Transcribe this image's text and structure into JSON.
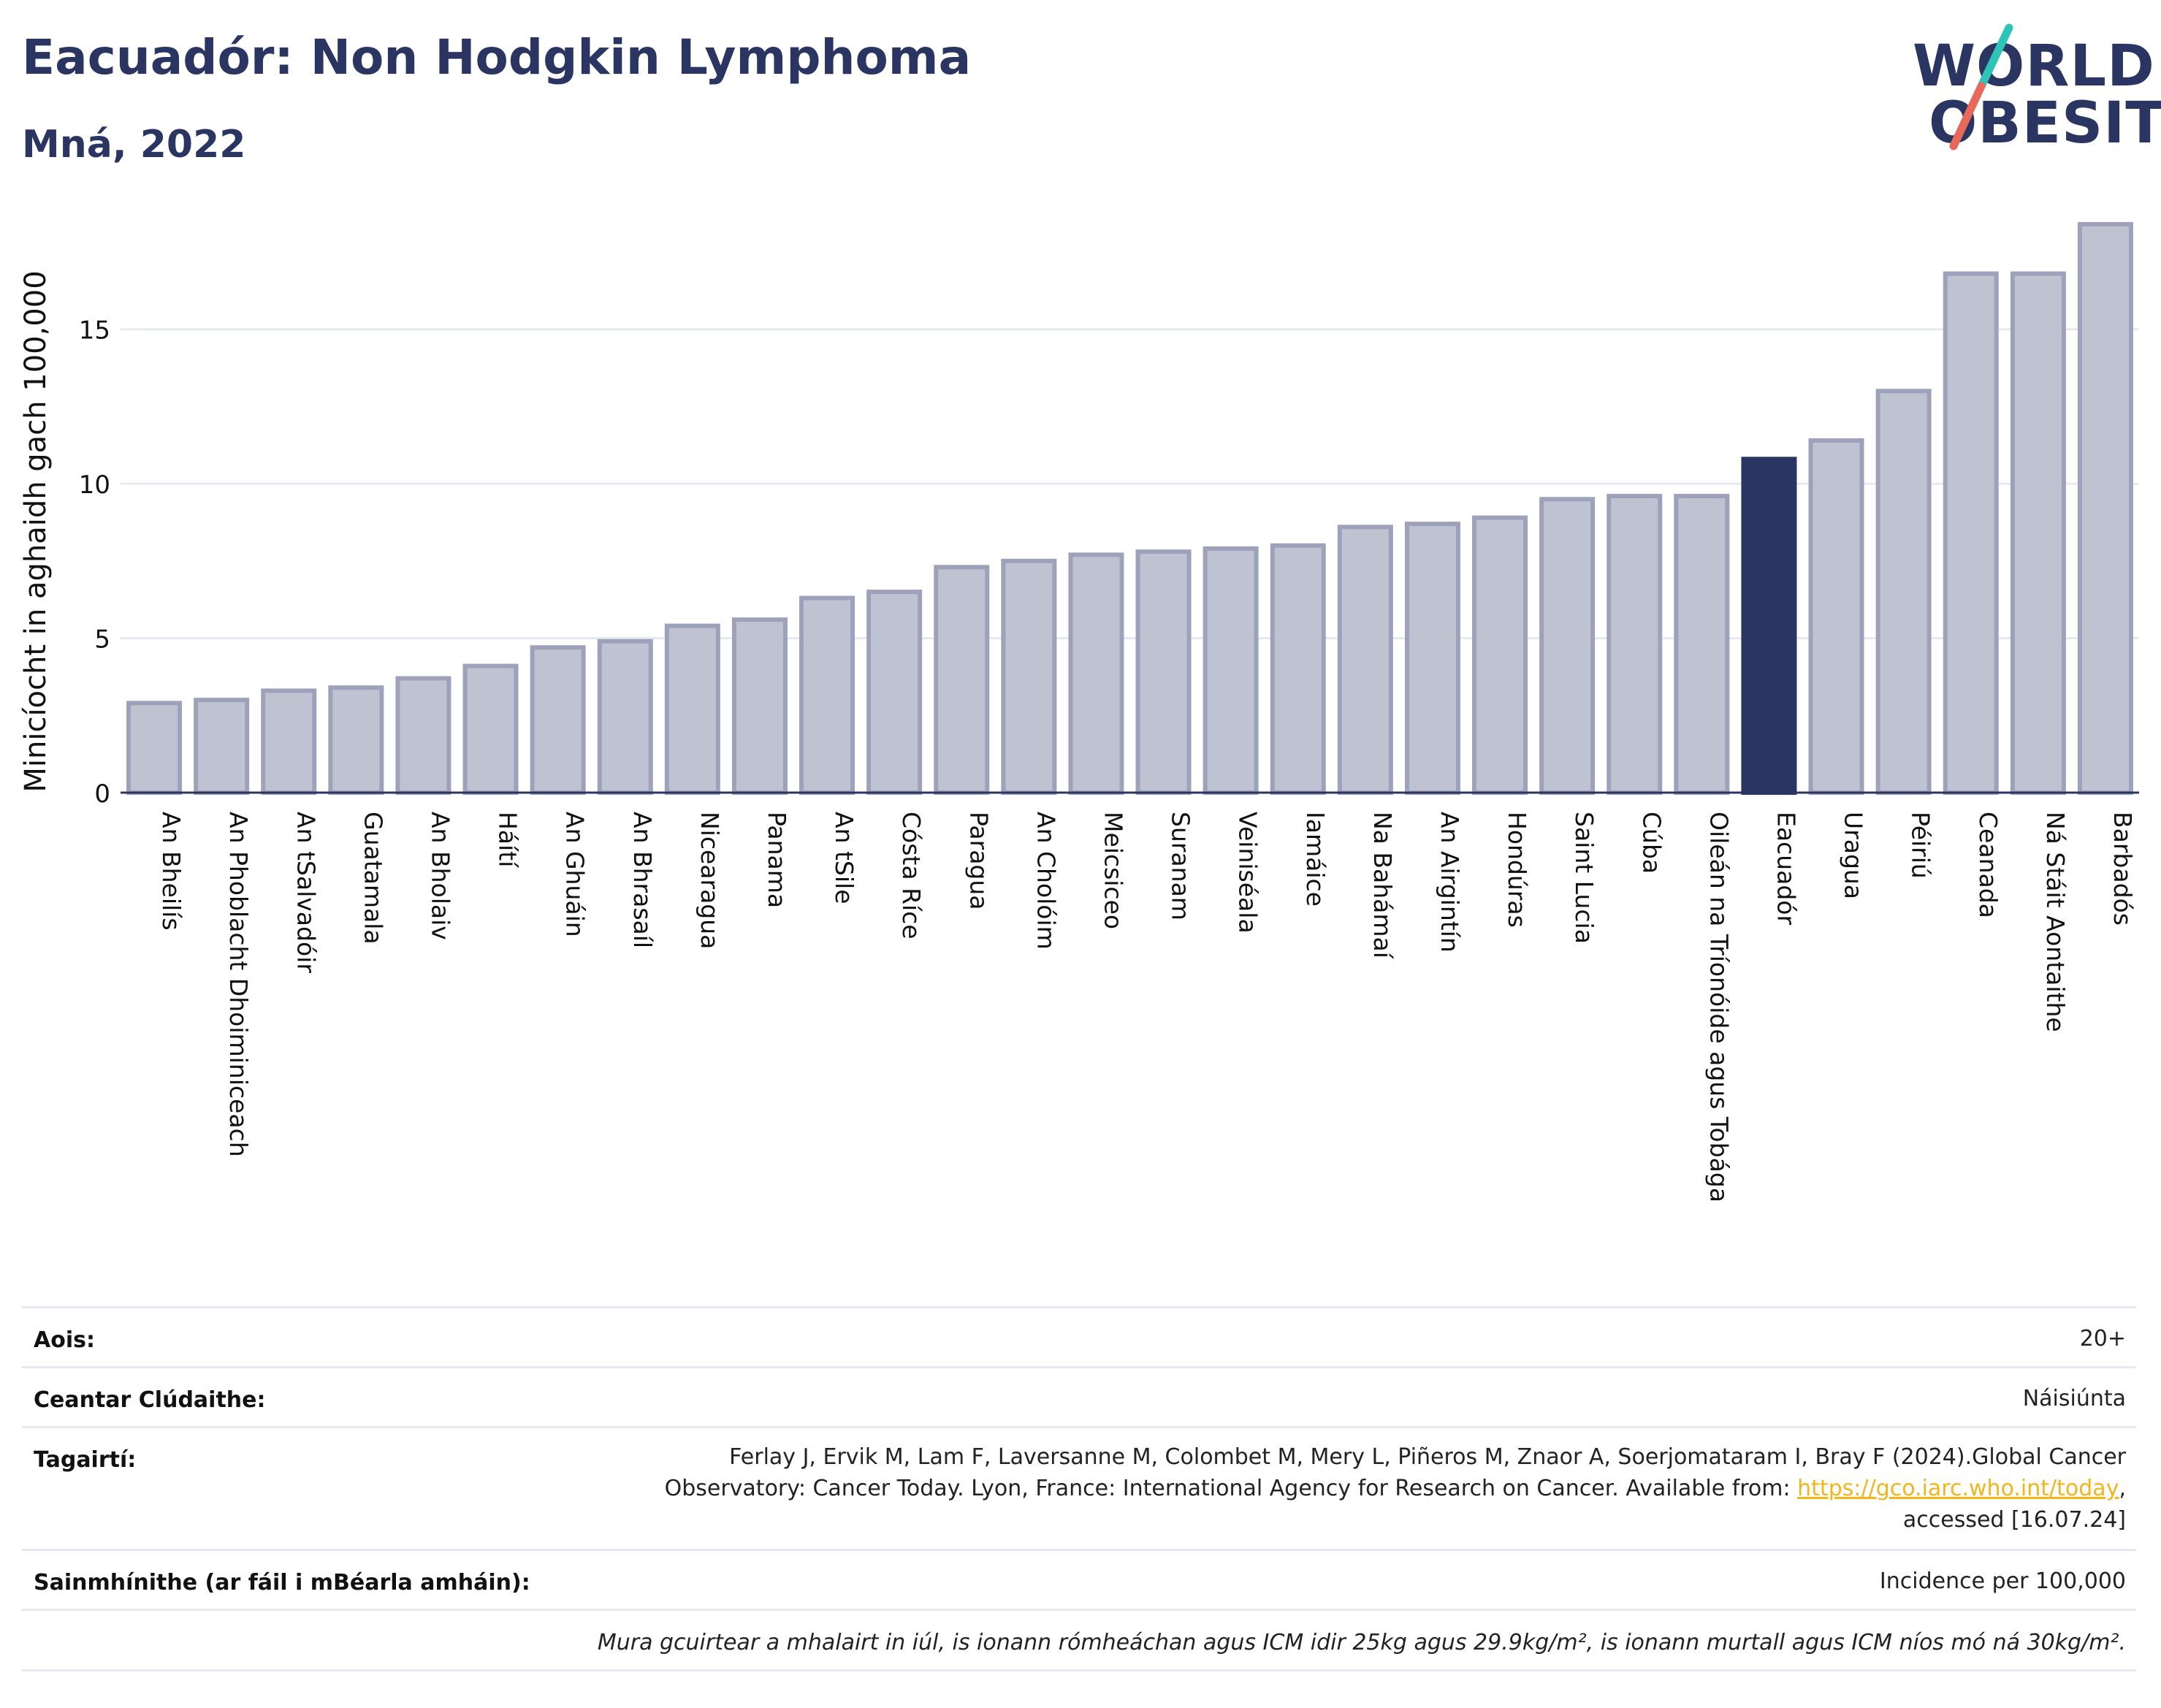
{
  "header": {
    "title": "Eacuadór: Non Hodgkin Lymphoma",
    "subtitle": "Mná, 2022"
  },
  "logo": {
    "line1": "WORLD",
    "line2": "OBESITY",
    "colors": {
      "text": "#2b3561",
      "slash_teal": "#2ec4b6",
      "slash_coral": "#e8685a"
    }
  },
  "chart_data": {
    "type": "bar",
    "title": "Eacuadór: Non Hodgkin Lymphoma",
    "subtitle": "Mná, 2022",
    "xlabel": "",
    "ylabel": "Minicíocht in aghaidh gach 100,000",
    "ylim": [
      0,
      18.8
    ],
    "yticks": [
      0,
      5,
      10,
      15
    ],
    "grid": true,
    "legend": "none",
    "highlight": "Eacuadór",
    "colors": {
      "bar": "#bfc3d1",
      "bar_border": "#9da2ba",
      "highlight": "#2b3561"
    },
    "categories": [
      "An Bheilís",
      "An Phoblacht Dhoiminiceach",
      "An tSalvadóir",
      "Guatamala",
      "An Bholaiv",
      "Háítí",
      "An Ghuáin",
      "An Bhrasaíl",
      "Nicearagua",
      "Panama",
      "An tSile",
      "Cósta Ríce",
      "Paragua",
      "An Cholóim",
      "Meicsiceo",
      "Suranam",
      "Veiniséala",
      "Iamáice",
      "Na Bahámaí",
      "An Airgintín",
      "Hondúras",
      "Saint Lucia",
      "Cúba",
      "Oileán na Tríonóide agus Tobága",
      "Eacuadór",
      "Uragua",
      "Péiriú",
      "Ceanada",
      "Ná Stáit Aontaithe",
      "Barbadós"
    ],
    "values": [
      2.9,
      3.0,
      3.3,
      3.4,
      3.7,
      4.1,
      4.7,
      4.9,
      5.4,
      5.6,
      6.3,
      6.5,
      7.3,
      7.5,
      7.7,
      7.8,
      7.9,
      8.0,
      8.6,
      8.7,
      8.9,
      9.5,
      9.6,
      9.6,
      10.8,
      11.4,
      13.0,
      16.8,
      16.8,
      18.4
    ]
  },
  "info_table": [
    {
      "label": "Aois:",
      "value": "20+"
    },
    {
      "label": "Ceantar Clúdaithe:",
      "value": "Náisiúnta"
    },
    {
      "label": "Tagairtí:",
      "value_line1": "Ferlay J, Ervik M, Lam F, Laversanne M, Colombet M, Mery L, Piñeros M, Znaor A, Soerjomataram I, Bray F (2024).Global Cancer",
      "value_line2_pre": "Observatory: Cancer Today. Lyon, France: International Agency for Research on Cancer. Available from: ",
      "link": "https://gco.iarc.who.int/today",
      "value_line2_post": ",",
      "value_line3": "accessed [16.07.24]"
    },
    {
      "label": "Sainmhínithe (ar fáil i mBéarla amháin):",
      "value": "Incidence per 100,000"
    }
  ],
  "footnote": "Mura gcuirtear a mhalairt in iúl, is ionann rómheáchan agus ICM idir 25kg agus 29.9kg/m², is ionann murtall agus ICM níos mó ná 30kg/m²."
}
